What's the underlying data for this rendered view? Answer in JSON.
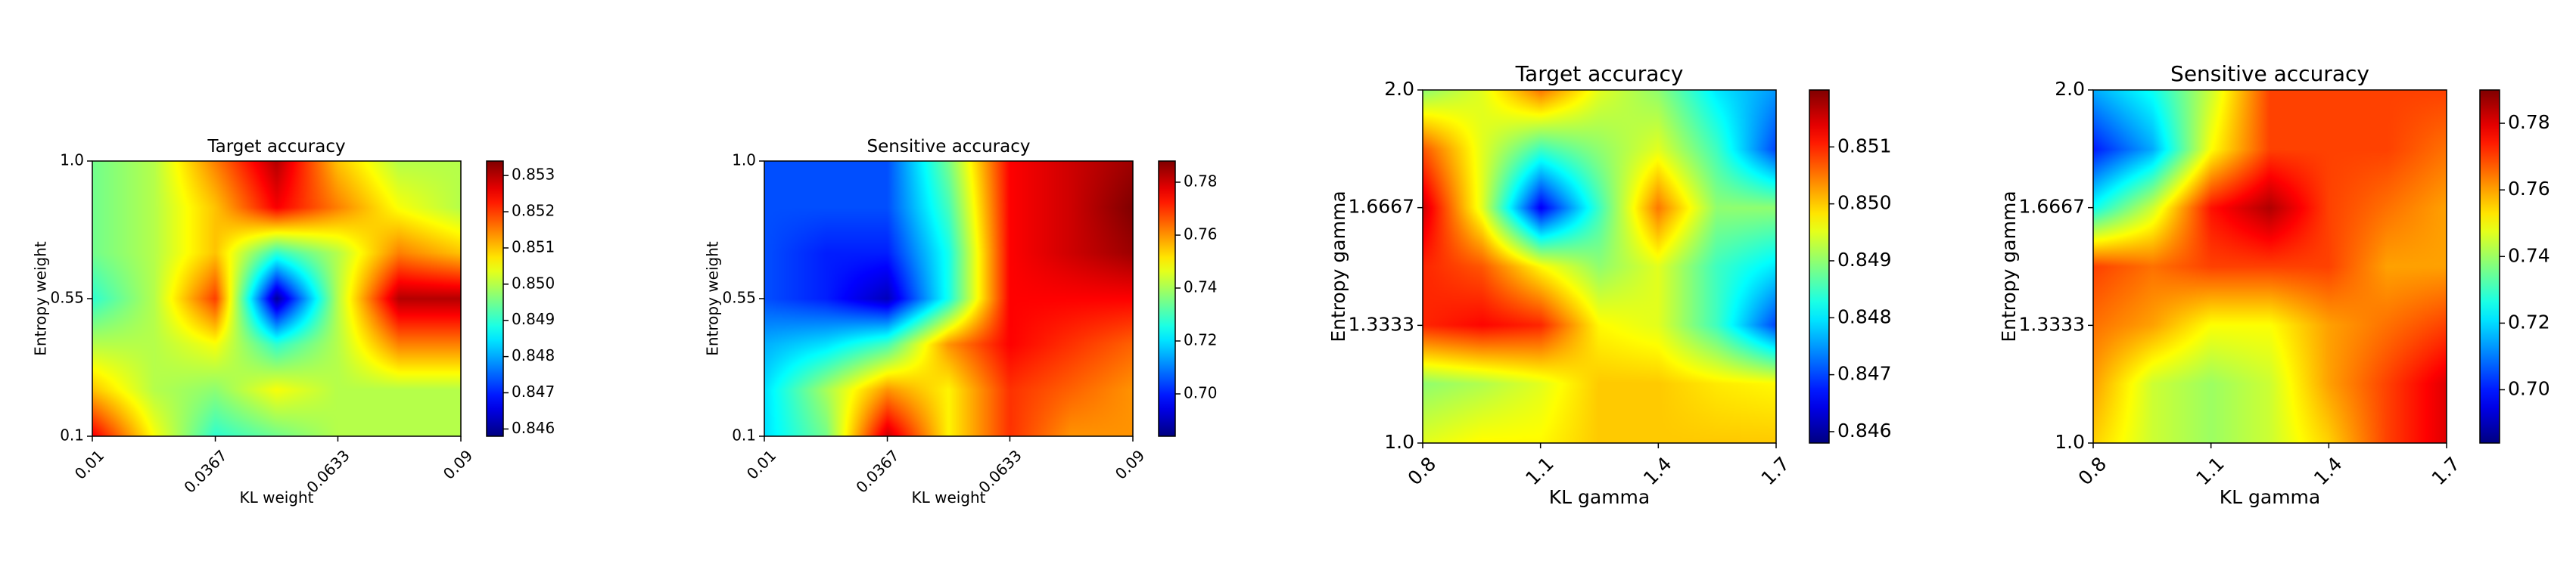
{
  "colormap": "jet",
  "chart_data": [
    {
      "type": "heatmap",
      "title": "Target accuracy",
      "xlabel": "KL weight",
      "ylabel": "Entropy weight",
      "x_ticks": [
        0.01,
        0.0367,
        0.0633,
        0.09
      ],
      "x_tick_labels": [
        "0.01",
        "0.0367",
        "0.0633",
        "0.09"
      ],
      "y_ticks": [
        0.1,
        0.55,
        1.0
      ],
      "y_tick_labels": [
        "0.1",
        "0.55",
        "1.0"
      ],
      "xlim": [
        0.01,
        0.09
      ],
      "ylim": [
        0.1,
        1.0
      ],
      "colorbar_range": [
        0.8458,
        0.8534
      ],
      "colorbar_ticks": [
        0.846,
        0.847,
        0.848,
        0.849,
        0.85,
        0.851,
        0.852,
        0.853
      ],
      "colorbar_tick_labels": [
        "0.846",
        "0.847",
        "0.848",
        "0.849",
        "0.850",
        "0.851",
        "0.852",
        "0.853"
      ],
      "grid_x": [
        0.01,
        0.0233,
        0.0367,
        0.05,
        0.0633,
        0.0767,
        0.09
      ],
      "grid_y": [
        0.1,
        0.25,
        0.4,
        0.55,
        0.7,
        0.85,
        1.0
      ],
      "values": [
        [
          0.8525,
          0.8505,
          0.849,
          0.8495,
          0.85,
          0.85,
          0.85
        ],
        [
          0.851,
          0.85,
          0.8497,
          0.8505,
          0.85,
          0.85,
          0.85
        ],
        [
          0.85,
          0.85,
          0.8505,
          0.849,
          0.85,
          0.8515,
          0.8515
        ],
        [
          0.849,
          0.85,
          0.852,
          0.846,
          0.85,
          0.853,
          0.853
        ],
        [
          0.8495,
          0.85,
          0.851,
          0.849,
          0.85,
          0.8515,
          0.851
        ],
        [
          0.8495,
          0.85,
          0.851,
          0.8525,
          0.8515,
          0.8505,
          0.85
        ],
        [
          0.8495,
          0.85,
          0.8515,
          0.853,
          0.851,
          0.85,
          0.85
        ]
      ]
    },
    {
      "type": "heatmap",
      "title": "Sensitive accuracy",
      "xlabel": "KL weight",
      "ylabel": "Entropy weight",
      "x_ticks": [
        0.01,
        0.0367,
        0.0633,
        0.09
      ],
      "x_tick_labels": [
        "0.01",
        "0.0367",
        "0.0633",
        "0.09"
      ],
      "y_ticks": [
        0.1,
        0.55,
        1.0
      ],
      "y_tick_labels": [
        "0.1",
        "0.55",
        "1.0"
      ],
      "xlim": [
        0.01,
        0.09
      ],
      "ylim": [
        0.1,
        1.0
      ],
      "colorbar_range": [
        0.684,
        0.788
      ],
      "colorbar_ticks": [
        0.7,
        0.72,
        0.74,
        0.76,
        0.78
      ],
      "colorbar_tick_labels": [
        "0.70",
        "0.72",
        "0.74",
        "0.76",
        "0.78"
      ],
      "grid_x": [
        0.01,
        0.0233,
        0.0367,
        0.05,
        0.0633,
        0.0767,
        0.09
      ],
      "grid_y": [
        0.1,
        0.25,
        0.4,
        0.55,
        0.7,
        0.85,
        1.0
      ],
      "values": [
        [
          0.72,
          0.735,
          0.78,
          0.75,
          0.77,
          0.76,
          0.76
        ],
        [
          0.72,
          0.74,
          0.76,
          0.75,
          0.77,
          0.765,
          0.76
        ],
        [
          0.715,
          0.72,
          0.73,
          0.76,
          0.775,
          0.77,
          0.765
        ],
        [
          0.705,
          0.7,
          0.69,
          0.725,
          0.775,
          0.775,
          0.775
        ],
        [
          0.705,
          0.7,
          0.7,
          0.725,
          0.775,
          0.78,
          0.785
        ],
        [
          0.705,
          0.705,
          0.705,
          0.73,
          0.775,
          0.78,
          0.788
        ],
        [
          0.705,
          0.705,
          0.705,
          0.735,
          0.775,
          0.78,
          0.785
        ]
      ]
    },
    {
      "type": "heatmap",
      "title": "Target accuracy",
      "xlabel": "KL gamma",
      "ylabel": "Entropy gamma",
      "x_ticks": [
        0.8,
        1.1,
        1.4,
        1.7
      ],
      "x_tick_labels": [
        "0.8",
        "1.1",
        "1.4",
        "1.7"
      ],
      "y_ticks": [
        1.0,
        1.3333,
        1.6667,
        2.0
      ],
      "y_tick_labels": [
        "1.0",
        "1.3333",
        "1.6667",
        "2.0"
      ],
      "xlim": [
        0.8,
        1.7
      ],
      "ylim": [
        1.0,
        2.0
      ],
      "colorbar_range": [
        0.8458,
        0.852
      ],
      "colorbar_ticks": [
        0.846,
        0.847,
        0.848,
        0.849,
        0.85,
        0.851
      ],
      "colorbar_tick_labels": [
        "0.846",
        "0.847",
        "0.848",
        "0.849",
        "0.850",
        "0.851"
      ],
      "grid_x": [
        0.8,
        0.95,
        1.1,
        1.25,
        1.4,
        1.55,
        1.7
      ],
      "grid_y": [
        1.0,
        1.1667,
        1.3333,
        1.5,
        1.6667,
        1.8333,
        2.0
      ],
      "values": [
        [
          0.8495,
          0.8497,
          0.8497,
          0.85,
          0.85,
          0.85,
          0.85
        ],
        [
          0.849,
          0.8492,
          0.8495,
          0.85,
          0.85,
          0.8498,
          0.8497
        ],
        [
          0.851,
          0.8512,
          0.851,
          0.8497,
          0.8495,
          0.8485,
          0.847
        ],
        [
          0.851,
          0.8507,
          0.8497,
          0.849,
          0.8495,
          0.8485,
          0.848
        ],
        [
          0.8515,
          0.8495,
          0.8465,
          0.8485,
          0.8505,
          0.849,
          0.849
        ],
        [
          0.8507,
          0.8495,
          0.8485,
          0.849,
          0.8495,
          0.8485,
          0.847
        ],
        [
          0.849,
          0.8495,
          0.8505,
          0.8495,
          0.849,
          0.848,
          0.8475
        ]
      ]
    },
    {
      "type": "heatmap",
      "title": "Sensitive accuracy",
      "xlabel": "KL gamma",
      "ylabel": "Entropy gamma",
      "x_ticks": [
        0.8,
        1.1,
        1.4,
        1.7
      ],
      "x_tick_labels": [
        "0.8",
        "1.1",
        "1.4",
        "1.7"
      ],
      "y_ticks": [
        1.0,
        1.3333,
        1.6667,
        2.0
      ],
      "y_tick_labels": [
        "1.0",
        "1.3333",
        "1.6667",
        "2.0"
      ],
      "xlim": [
        0.8,
        1.7
      ],
      "ylim": [
        1.0,
        2.0
      ],
      "colorbar_range": [
        0.684,
        0.79
      ],
      "colorbar_ticks": [
        0.7,
        0.72,
        0.74,
        0.76,
        0.78
      ],
      "colorbar_tick_labels": [
        "0.70",
        "0.72",
        "0.74",
        "0.76",
        "0.78"
      ],
      "grid_x": [
        0.8,
        0.95,
        1.1,
        1.25,
        1.4,
        1.55,
        1.7
      ],
      "grid_y": [
        1.0,
        1.1667,
        1.3333,
        1.5,
        1.6667,
        1.8333,
        2.0
      ],
      "values": [
        [
          0.755,
          0.745,
          0.74,
          0.745,
          0.755,
          0.77,
          0.78
        ],
        [
          0.76,
          0.745,
          0.74,
          0.745,
          0.76,
          0.77,
          0.78
        ],
        [
          0.765,
          0.76,
          0.75,
          0.75,
          0.76,
          0.765,
          0.77
        ],
        [
          0.77,
          0.765,
          0.77,
          0.77,
          0.77,
          0.76,
          0.76
        ],
        [
          0.725,
          0.745,
          0.775,
          0.785,
          0.77,
          0.765,
          0.76
        ],
        [
          0.7,
          0.715,
          0.75,
          0.77,
          0.77,
          0.77,
          0.765
        ],
        [
          0.715,
          0.725,
          0.745,
          0.77,
          0.77,
          0.77,
          0.77
        ]
      ]
    }
  ]
}
